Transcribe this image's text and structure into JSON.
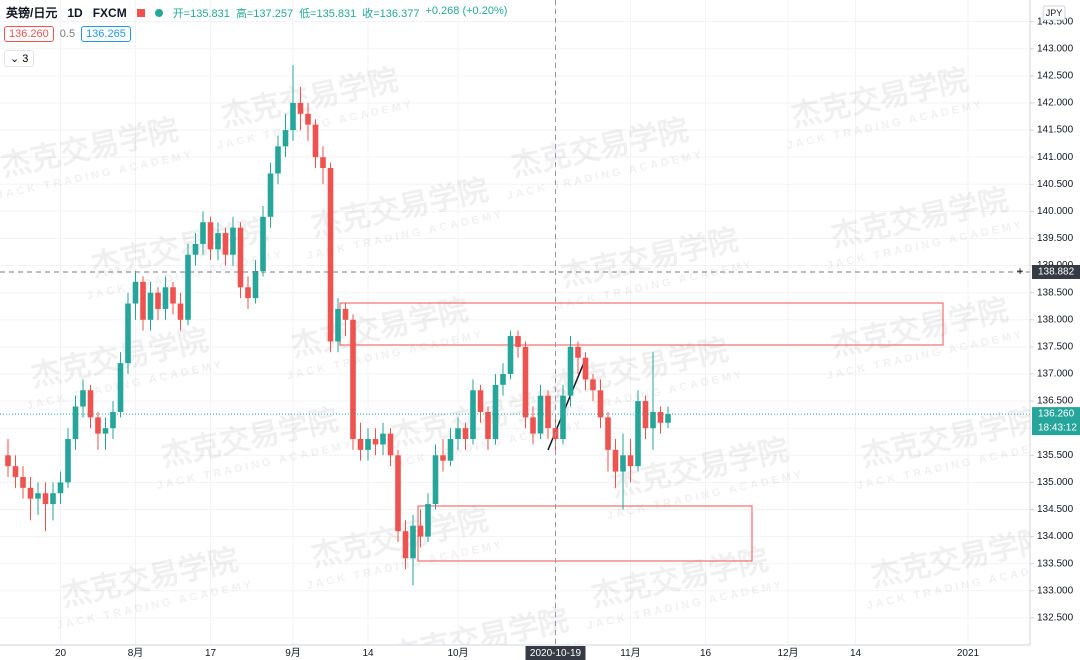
{
  "header": {
    "symbol": "英镑/日元",
    "interval": "1D",
    "source": "FXCM",
    "legend": [
      "开=135.831",
      "高=137.257",
      "低=135.831",
      "收=136.377",
      "+0.268 (+0.20%)"
    ]
  },
  "toolbar": {
    "sell": "136.260",
    "spread": "0.5",
    "buy": "136.265",
    "indicators": "3"
  },
  "watermark": {
    "title": "杰克交易学院",
    "subtitle": "JACK TRADING ACADEMY"
  },
  "chart_data": {
    "type": "candlestick",
    "currency": "JPY",
    "up_color": "#26a69a",
    "down_color": "#ef5350",
    "ylim": [
      132.0,
      143.9
    ],
    "yticks": [
      {
        "value": 132.5,
        "label": "132.500"
      },
      {
        "value": 133,
        "label": "133.000"
      },
      {
        "value": 133.5,
        "label": "133.500"
      },
      {
        "value": 134,
        "label": "134.000"
      },
      {
        "value": 134.5,
        "label": "134.500"
      },
      {
        "value": 135,
        "label": "135.000"
      },
      {
        "value": 135.5,
        "label": "135.500"
      },
      {
        "value": 136,
        "label": "136.000"
      },
      {
        "value": 136.5,
        "label": "136.500"
      },
      {
        "value": 137,
        "label": "137.000"
      },
      {
        "value": 137.5,
        "label": "137.500"
      },
      {
        "value": 138,
        "label": "138.000"
      },
      {
        "value": 138.5,
        "label": "138.500"
      },
      {
        "value": 139,
        "label": "139.000"
      },
      {
        "value": 139.5,
        "label": "139.500"
      },
      {
        "value": 140,
        "label": "140.000"
      },
      {
        "value": 140.5,
        "label": "140.500"
      },
      {
        "value": 141,
        "label": "141.000"
      },
      {
        "value": 141.5,
        "label": "141.500"
      },
      {
        "value": 142,
        "label": "142.000"
      },
      {
        "value": 142.5,
        "label": "142.500"
      },
      {
        "value": 143,
        "label": "143.000"
      },
      {
        "value": 143.5,
        "label": "143.500"
      }
    ],
    "categories": [
      null,
      null,
      null,
      null,
      null,
      null,
      null,
      "20",
      null,
      null,
      null,
      null,
      null,
      null,
      null,
      null,
      null,
      "8月",
      null,
      null,
      null,
      null,
      null,
      null,
      null,
      null,
      null,
      "17",
      null,
      null,
      null,
      null,
      null,
      null,
      null,
      null,
      null,
      null,
      "9月",
      null,
      null,
      null,
      null,
      null,
      null,
      null,
      null,
      null,
      "14",
      null,
      null,
      null,
      null,
      null,
      null,
      null,
      null,
      null,
      null,
      null,
      "10月",
      null,
      null,
      null,
      null,
      null,
      null,
      null,
      null,
      null,
      null,
      null,
      null,
      "2020-10-19",
      null,
      null,
      null,
      null,
      null,
      null,
      null,
      null,
      null,
      "11月",
      null,
      null,
      null,
      null,
      null,
      null,
      null,
      null,
      null,
      "16",
      null,
      null,
      null,
      null,
      null,
      null,
      null,
      null,
      null,
      null,
      "12月",
      null,
      null,
      null,
      null,
      null,
      null,
      null,
      null,
      "14",
      null,
      null,
      null,
      null,
      null,
      null,
      null,
      null,
      null,
      null,
      null,
      null,
      null,
      null,
      "2021"
    ],
    "ohlc": [
      [
        135.5,
        135.8,
        135.1,
        135.3
      ],
      [
        135.3,
        135.5,
        134.9,
        135.1
      ],
      [
        135.1,
        135.3,
        134.7,
        134.9
      ],
      [
        134.9,
        135.1,
        134.3,
        134.7
      ],
      [
        134.7,
        135.0,
        134.4,
        134.8
      ],
      [
        134.8,
        135.0,
        134.1,
        134.6
      ],
      [
        134.6,
        135.0,
        134.3,
        134.8
      ],
      [
        134.8,
        135.2,
        134.6,
        135.0
      ],
      [
        135.0,
        136.0,
        134.9,
        135.8
      ],
      [
        135.8,
        136.6,
        135.6,
        136.4
      ],
      [
        136.4,
        136.9,
        136.2,
        136.7
      ],
      [
        136.7,
        136.8,
        136.0,
        136.2
      ],
      [
        136.2,
        136.3,
        135.6,
        135.9
      ],
      [
        135.9,
        136.2,
        135.6,
        136.0
      ],
      [
        136.0,
        136.5,
        135.8,
        136.3
      ],
      [
        136.3,
        137.4,
        136.2,
        137.2
      ],
      [
        137.2,
        138.5,
        137.0,
        138.3
      ],
      [
        138.3,
        138.9,
        138.0,
        138.7
      ],
      [
        138.7,
        138.8,
        137.8,
        138.0
      ],
      [
        138.0,
        138.7,
        137.8,
        138.5
      ],
      [
        138.5,
        138.6,
        138.0,
        138.2
      ],
      [
        138.2,
        138.8,
        138.0,
        138.6
      ],
      [
        138.6,
        138.7,
        138.1,
        138.3
      ],
      [
        138.3,
        138.5,
        137.8,
        138.0
      ],
      [
        138.0,
        139.4,
        137.9,
        139.2
      ],
      [
        139.2,
        139.6,
        139.0,
        139.4
      ],
      [
        139.4,
        140.0,
        139.2,
        139.8
      ],
      [
        139.8,
        139.9,
        139.1,
        139.3
      ],
      [
        139.3,
        139.8,
        139.1,
        139.6
      ],
      [
        139.6,
        139.7,
        139.0,
        139.2
      ],
      [
        139.2,
        139.9,
        139.0,
        139.7
      ],
      [
        139.7,
        139.8,
        138.4,
        138.6
      ],
      [
        138.6,
        138.8,
        138.2,
        138.4
      ],
      [
        138.4,
        139.1,
        138.3,
        138.9
      ],
      [
        138.9,
        140.1,
        138.8,
        139.9
      ],
      [
        139.9,
        140.9,
        139.7,
        140.7
      ],
      [
        140.7,
        141.4,
        140.5,
        141.2
      ],
      [
        141.2,
        141.8,
        141.0,
        141.5
      ],
      [
        141.5,
        142.7,
        141.3,
        142.0
      ],
      [
        142.0,
        142.3,
        141.5,
        141.8
      ],
      [
        141.8,
        142.0,
        141.3,
        141.6
      ],
      [
        141.6,
        141.7,
        140.8,
        141.0
      ],
      [
        141.0,
        141.2,
        140.5,
        140.8
      ],
      [
        140.8,
        140.9,
        137.4,
        137.6
      ],
      [
        137.6,
        138.4,
        137.4,
        138.2
      ],
      [
        138.2,
        138.3,
        137.7,
        138.0
      ],
      [
        138.0,
        138.1,
        135.6,
        135.8
      ],
      [
        135.8,
        136.1,
        135.4,
        135.6
      ],
      [
        135.6,
        136.0,
        135.4,
        135.8
      ],
      [
        135.8,
        136.0,
        135.5,
        135.7
      ],
      [
        135.7,
        136.1,
        135.5,
        135.9
      ],
      [
        135.9,
        136.0,
        135.3,
        135.5
      ],
      [
        135.5,
        135.6,
        133.9,
        134.1
      ],
      [
        134.1,
        134.3,
        133.4,
        133.6
      ],
      [
        133.6,
        134.4,
        133.1,
        134.2
      ],
      [
        134.2,
        134.5,
        133.8,
        134.0
      ],
      [
        134.0,
        134.8,
        133.9,
        134.6
      ],
      [
        134.6,
        135.7,
        134.5,
        135.5
      ],
      [
        135.5,
        135.8,
        135.2,
        135.4
      ],
      [
        135.4,
        136.0,
        135.3,
        135.8
      ],
      [
        135.8,
        136.2,
        135.6,
        136.0
      ],
      [
        136.0,
        136.1,
        135.6,
        135.8
      ],
      [
        135.8,
        136.9,
        135.7,
        136.7
      ],
      [
        136.7,
        136.8,
        136.1,
        136.3
      ],
      [
        136.3,
        136.4,
        135.6,
        135.8
      ],
      [
        135.8,
        137.0,
        135.7,
        136.8
      ],
      [
        136.8,
        137.2,
        136.6,
        137.0
      ],
      [
        137.0,
        137.8,
        136.9,
        137.7
      ],
      [
        137.7,
        137.8,
        137.3,
        137.5
      ],
      [
        137.5,
        137.6,
        136.0,
        136.2
      ],
      [
        136.2,
        136.4,
        135.7,
        135.9
      ],
      [
        135.9,
        136.8,
        135.8,
        136.6
      ],
      [
        136.6,
        136.7,
        135.8,
        136.0
      ],
      [
        136.0,
        136.2,
        135.5,
        135.8
      ],
      [
        135.8,
        136.8,
        135.7,
        136.6
      ],
      [
        136.6,
        137.7,
        136.4,
        137.5
      ],
      [
        137.5,
        137.6,
        137.0,
        137.3
      ],
      [
        137.3,
        137.4,
        136.7,
        136.9
      ],
      [
        136.9,
        137.0,
        136.5,
        136.7
      ],
      [
        136.7,
        136.9,
        136.0,
        136.2
      ],
      [
        136.2,
        136.3,
        135.2,
        135.6
      ],
      [
        135.6,
        135.8,
        134.9,
        135.2
      ],
      [
        135.2,
        135.9,
        134.5,
        135.5
      ],
      [
        135.5,
        135.8,
        135.0,
        135.3
      ],
      [
        135.3,
        136.7,
        135.2,
        136.5
      ],
      [
        136.5,
        136.6,
        135.8,
        136.0
      ],
      [
        136.0,
        137.4,
        135.6,
        136.3
      ],
      [
        136.3,
        136.4,
        135.9,
        136.1
      ],
      [
        136.1,
        136.4,
        136.0,
        136.26
      ],
      null,
      null,
      null,
      null,
      null,
      null,
      null,
      null,
      null,
      null,
      null,
      null,
      null,
      null,
      null,
      null,
      null,
      null,
      null,
      null,
      null,
      null,
      null,
      null,
      null,
      null,
      null,
      null,
      null,
      null,
      null,
      null,
      null,
      null,
      null,
      null,
      null,
      null,
      null,
      null
    ],
    "last_price": {
      "value": 136.26,
      "label": "136.260",
      "countdown": "18:43:12"
    },
    "crosshair": {
      "value": 138.882,
      "label": "138.882"
    }
  }
}
